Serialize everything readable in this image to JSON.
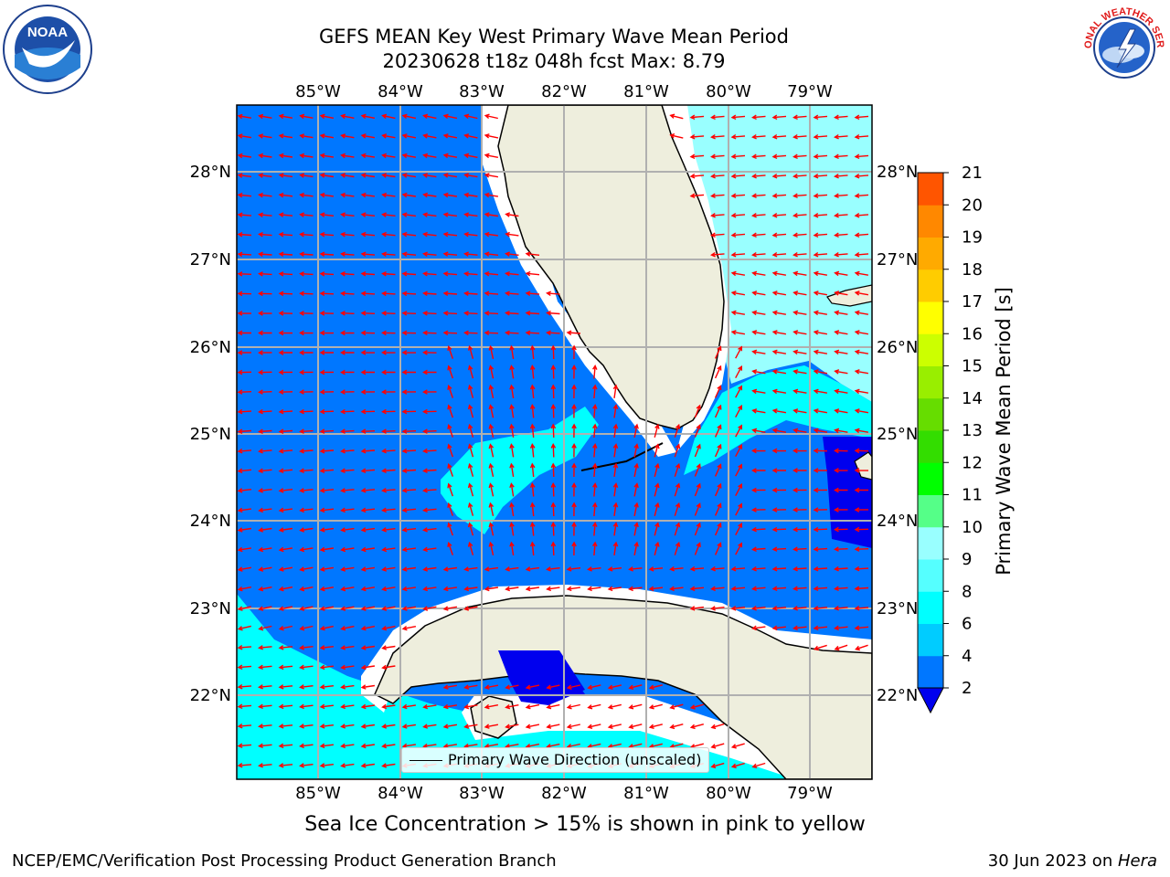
{
  "title": {
    "line1": "GEFS MEAN Key West Primary Wave Mean Period",
    "line2": "20230628 t18z 048h fcst   Max: 8.79"
  },
  "map": {
    "lon_labels": [
      "85°W",
      "84°W",
      "83°W",
      "82°W",
      "81°W",
      "80°W",
      "79°W"
    ],
    "lat_labels": [
      "28°N",
      "27°N",
      "26°N",
      "25°N",
      "24°N",
      "23°N",
      "22°N"
    ],
    "legend_text": "Primary Wave Direction (unscaled)",
    "arrow_color": "#ff0000",
    "land_color": "#eeeedd"
  },
  "colorbar": {
    "label": "Primary Wave Mean Period [s]",
    "ticks": [
      "2",
      "4",
      "6",
      "8",
      "9",
      "10",
      "11",
      "12",
      "13",
      "14",
      "15",
      "16",
      "17",
      "18",
      "19",
      "20",
      "21"
    ],
    "colors": [
      "#0077ff",
      "#00ccff",
      "#00ffff",
      "#55ffff",
      "#99ffff",
      "#55ff88",
      "#00ff00",
      "#33dd00",
      "#66dd00",
      "#99ee00",
      "#ccff00",
      "#ffff00",
      "#ffcc00",
      "#ffaa00",
      "#ff8800",
      "#ff5500",
      "#ff2200",
      "#ff0000"
    ],
    "under_color": "#0000ee"
  },
  "ice_note": "Sea Ice Concentration > 15% is shown in pink to yellow",
  "footer": {
    "left": "NCEP/EMC/Verification Post Processing Product Generation Branch",
    "right_prefix": "30 Jun 2023 on ",
    "right_host": "Hera"
  },
  "logos": {
    "noaa_text": "NOAA",
    "nws_text": "NATIONAL WEATHER SERVICE"
  }
}
